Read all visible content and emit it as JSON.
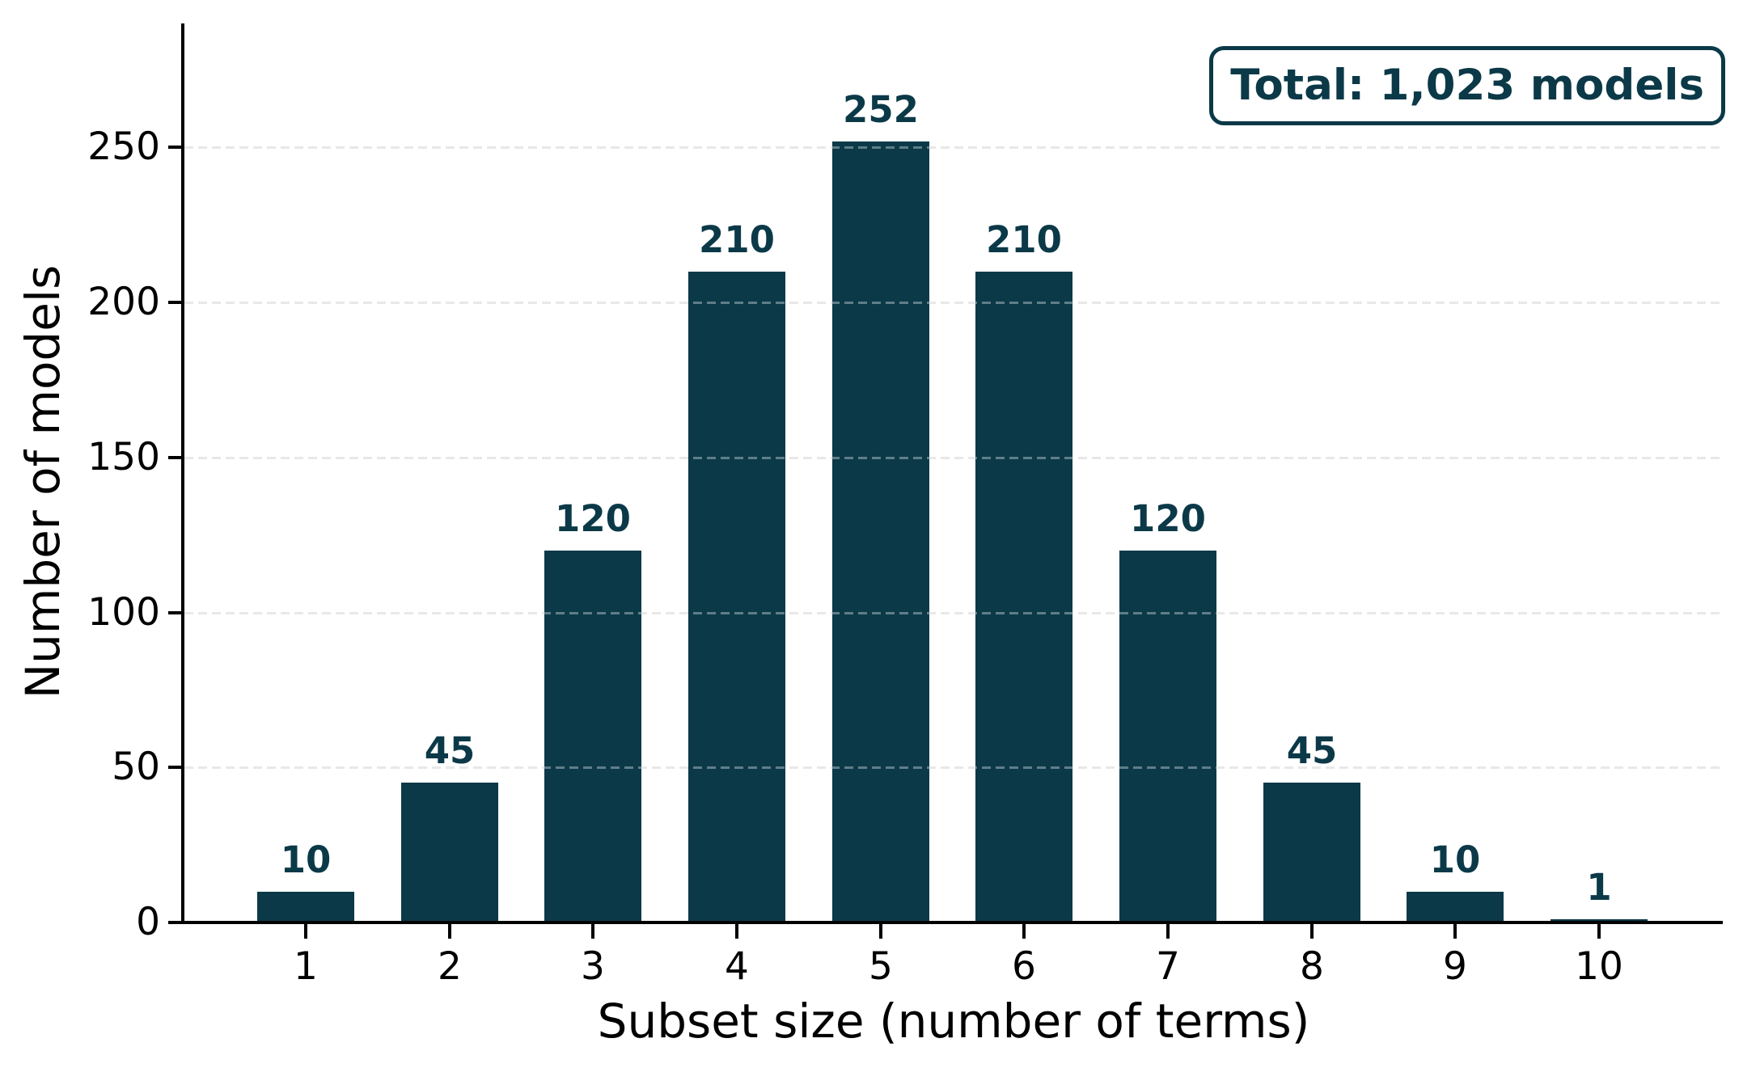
{
  "chart_data": {
    "type": "bar",
    "title": "",
    "xlabel": "Subset size (number of terms)",
    "ylabel": "Number of models",
    "categories": [
      "1",
      "2",
      "3",
      "4",
      "5",
      "6",
      "7",
      "8",
      "9",
      "10"
    ],
    "values": [
      10,
      45,
      120,
      210,
      252,
      210,
      120,
      45,
      10,
      1
    ],
    "bar_labels": [
      "10",
      "45",
      "120",
      "210",
      "252",
      "210",
      "120",
      "45",
      "10",
      "1"
    ],
    "yticks": [
      0,
      50,
      100,
      150,
      200,
      250
    ],
    "ylim": [
      0,
      290
    ],
    "grid": "horizontal-dashed",
    "legend": "none",
    "annotation": "Total: 1,023 models",
    "colors": {
      "bar": "#0b3948",
      "value_label": "#0b3948",
      "annotation_text": "#0b3948",
      "annotation_border": "#0b3948",
      "grid": "#dcdcdc",
      "axis": "#000000",
      "background": "#ffffff"
    }
  }
}
